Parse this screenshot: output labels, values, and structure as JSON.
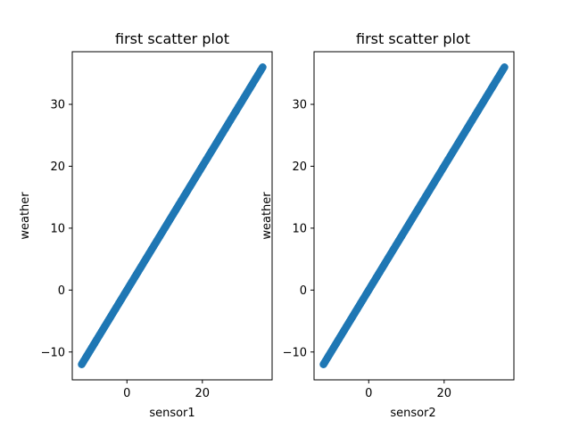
{
  "chart_data": [
    {
      "type": "scatter",
      "title": "first scatter plot",
      "xlabel": "sensor1",
      "ylabel": "weather",
      "xlim": [
        -14.5,
        38.5
      ],
      "ylim": [
        -14.5,
        38.5
      ],
      "xticks": [
        0,
        20
      ],
      "yticks": [
        -10,
        0,
        10,
        20,
        30
      ],
      "x_range": [
        -12,
        36
      ],
      "y_range": [
        -12,
        36
      ],
      "relation": "y = x",
      "point_color": "#1f77b4",
      "grid": false
    },
    {
      "type": "scatter",
      "title": "first scatter plot",
      "xlabel": "sensor2",
      "ylabel": "weather",
      "xlim": [
        -14.5,
        38.5
      ],
      "ylim": [
        -14.5,
        38.5
      ],
      "xticks": [
        0,
        20
      ],
      "yticks": [
        -10,
        0,
        10,
        20,
        30
      ],
      "x_range": [
        -12,
        36
      ],
      "y_range": [
        -12,
        36
      ],
      "relation": "y = x",
      "point_color": "#1f77b4",
      "grid": false
    }
  ]
}
